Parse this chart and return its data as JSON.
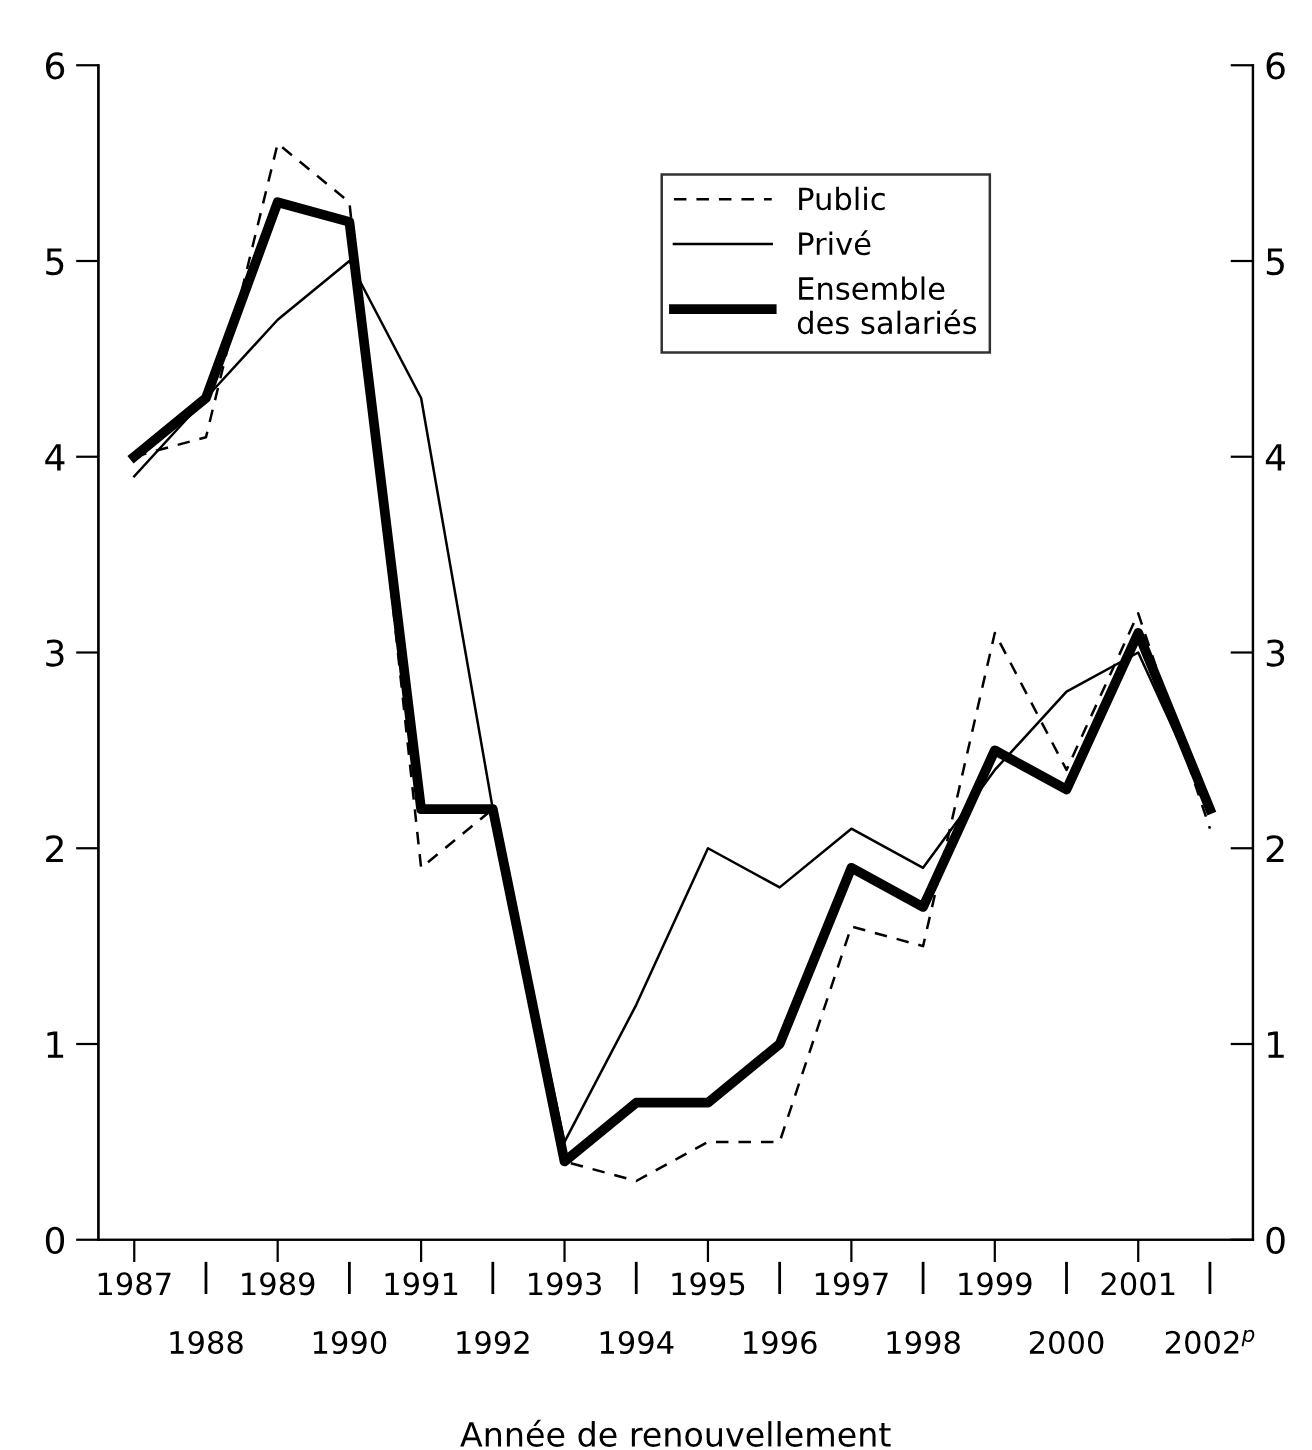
{
  "chart_data": {
    "type": "line",
    "xlabel": "Année de renouvellement",
    "categories": [
      "1987",
      "1988",
      "1989",
      "1990",
      "1991",
      "1992",
      "1993",
      "1994",
      "1995",
      "1996",
      "1997",
      "1998",
      "1999",
      "2000",
      "2001",
      "2002$^{p}$"
    ],
    "series": [
      {
        "name": "Public",
        "color": "#000000",
        "line_style": "dashed",
        "values": [
          4.0,
          4.1,
          5.6,
          5.3,
          1.9,
          2.2,
          0.4,
          0.3,
          0.5,
          0.5,
          1.6,
          1.5,
          3.1,
          2.4,
          3.2,
          2.1
        ]
      },
      {
        "name": "Privé",
        "color": "#000000",
        "line_style": "solid",
        "values": [
          3.9,
          4.3,
          4.7,
          5.0,
          4.3,
          2.2,
          0.5,
          1.2,
          2.0,
          1.8,
          2.1,
          1.9,
          2.4,
          2.8,
          3.0,
          2.2
        ]
      },
      {
        "name": "Ensemble\ndes salariés",
        "color": "#000000",
        "line_style": "solid",
        "values": [
          4.0,
          4.3,
          5.3,
          5.2,
          2.2,
          2.2,
          0.4,
          0.7,
          0.7,
          1.0,
          1.9,
          1.7,
          2.5,
          2.3,
          3.1,
          2.2
        ]
      }
    ],
    "ylim": [
      0,
      6
    ],
    "yticks": [
      0,
      1,
      2,
      3,
      4,
      5,
      6
    ],
    "y2lim": [
      0,
      6
    ],
    "y2ticks": [
      0,
      1,
      2,
      3,
      4,
      5,
      6
    ],
    "grid": false,
    "legend": "top",
    "marker": "none"
  }
}
